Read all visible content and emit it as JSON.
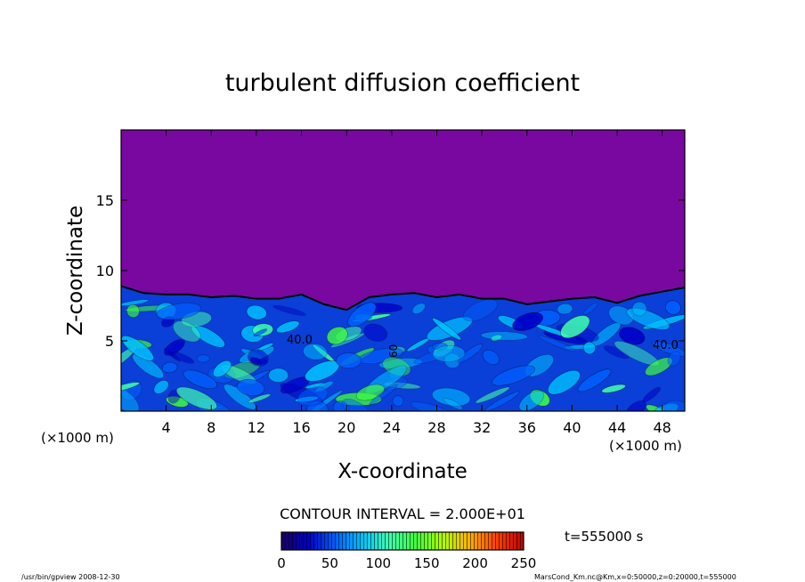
{
  "chart_data": {
    "type": "heatmap",
    "title": "turbulent diffusion coefficient",
    "xlabel": "X-coordinate",
    "ylabel": "Z-coordinate",
    "x_unit": "(×1000 m)",
    "x_unit_right": "(×1000 m)",
    "xlim": [
      0,
      50
    ],
    "ylim": [
      0,
      20
    ],
    "x_ticks": [
      "4",
      "8",
      "12",
      "16",
      "20",
      "24",
      "28",
      "32",
      "36",
      "40",
      "44",
      "48"
    ],
    "y_ticks": [
      "5",
      "10",
      "15"
    ],
    "contour_interval_text": "CONTOUR INTERVAL = 2.000E+01",
    "contour_labels": [
      "40.0",
      "40.0",
      "60"
    ],
    "time_text": "t=555000  s",
    "colorbar": {
      "range": [
        0,
        250
      ],
      "ticks": [
        "0",
        "50",
        "100",
        "150",
        "200",
        "250"
      ],
      "colormap": [
        "#1a0060",
        "#0000c8",
        "#0060ff",
        "#00c0ff",
        "#40ffb0",
        "#40ff40",
        "#b0ff00",
        "#ffb000",
        "#ff4000",
        "#c00000"
      ]
    },
    "boundary_layer_top_profile": [
      [
        0,
        8.9
      ],
      [
        2,
        8.4
      ],
      [
        4,
        8.3
      ],
      [
        6,
        8.3
      ],
      [
        8,
        8.1
      ],
      [
        10,
        8.2
      ],
      [
        12,
        8.0
      ],
      [
        14,
        8.0
      ],
      [
        16,
        8.3
      ],
      [
        18,
        7.6
      ],
      [
        20,
        7.2
      ],
      [
        22,
        8.1
      ],
      [
        24,
        8.3
      ],
      [
        26,
        8.4
      ],
      [
        28,
        8.1
      ],
      [
        30,
        8.3
      ],
      [
        32,
        8.0
      ],
      [
        34,
        8.0
      ],
      [
        36,
        7.6
      ],
      [
        38,
        7.8
      ],
      [
        40,
        8.0
      ],
      [
        42,
        8.1
      ],
      [
        44,
        7.7
      ],
      [
        46,
        8.2
      ],
      [
        48,
        8.5
      ],
      [
        50,
        8.8
      ]
    ],
    "free_atmosphere_value": 0,
    "background_color": "#7808a0"
  },
  "footer": {
    "left": "/usr/bin/gpview   2008-12-30",
    "right": "MarsCond_Km.nc@Km,x=0:50000,z=0:20000,t=555000"
  }
}
